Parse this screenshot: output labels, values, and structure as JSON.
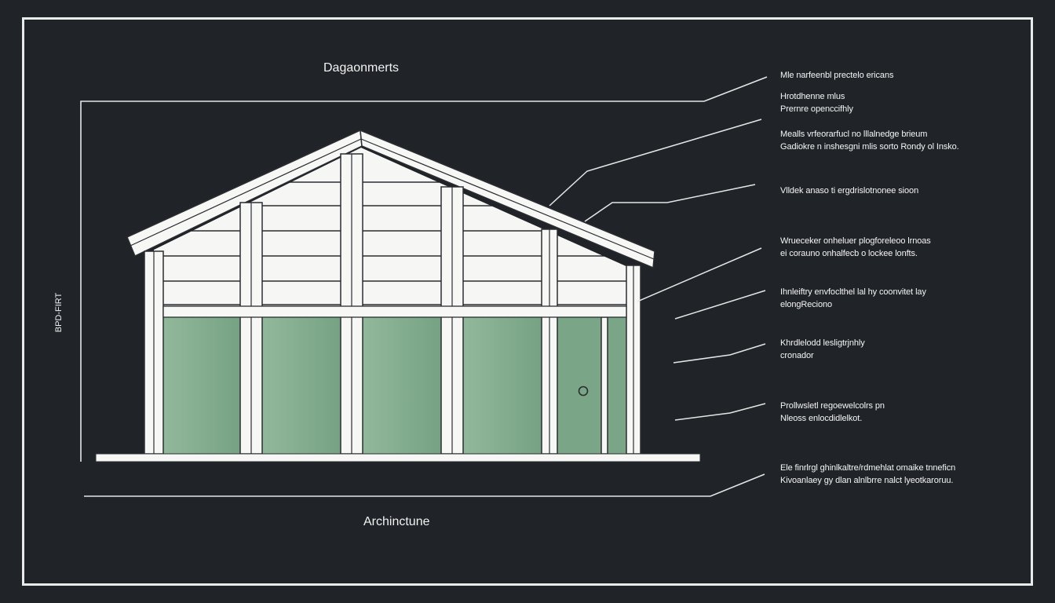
{
  "titles": {
    "top": "Dagaonmerts",
    "bottom": "Archinctune",
    "side": "BPD-FIRT"
  },
  "notes": [
    {
      "lines": [
        "Mle narfeenbl prectelo ericans"
      ]
    },
    {
      "lines": [
        "Hrotdhenne mlus",
        "Prernre openccifhly"
      ]
    },
    {
      "lines": [
        "Mealls vrfeorarfucl no lllalnedge brieum",
        "Gadiokre n inshesgni mlis sorto Rondy ol Insko."
      ]
    },
    {
      "lines": [
        "Vlldek anaso ti ergdrislotnonee sioon"
      ]
    },
    {
      "lines": [
        "Wrueceker onheluer plogforeleoo lrnoas",
        "ei corauno onhalfecb o lockee lonfts."
      ]
    },
    {
      "lines": [
        "Ihnleiftry envfoclthel lal hy coonvitet lay",
        "elongReciono"
      ]
    },
    {
      "lines": [
        "Khrdlelodd lesligtrjnhly",
        "cronador"
      ]
    },
    {
      "lines": [
        "Prollwsletl regoewelcolrs pn",
        "Nleoss enlocdidlelkot."
      ]
    },
    {
      "lines": [
        "Ele finrlrgl ghinlkaltre/rdmehlat omaike tnneficn",
        "Kivoanlaey gy dlan alnlbrre nalct lyeotkaroruu."
      ]
    }
  ],
  "colors": {
    "background": "#202327",
    "line": "#f0f0f0",
    "glass": "#7ea98a",
    "glass_light": "#96bb9f",
    "panel": "#f7f7f5"
  }
}
